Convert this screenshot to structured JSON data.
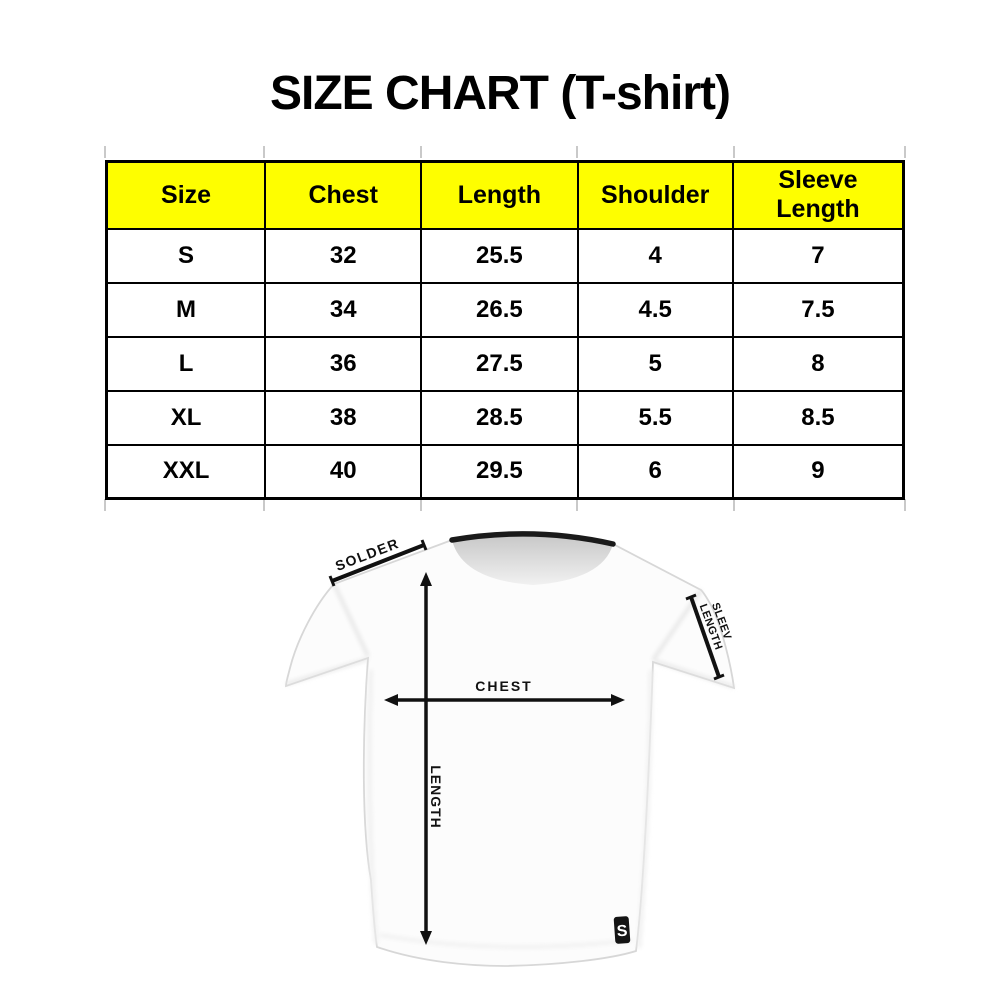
{
  "title": "SIZE CHART (T-shirt)",
  "table": {
    "header_bg": "#fefe00",
    "border_color": "#000000",
    "columns": [
      "Size",
      "Chest",
      "Length",
      "Shoulder",
      "Sleeve Length"
    ],
    "rows": [
      [
        "S",
        "32",
        "25.5",
        "4",
        "7"
      ],
      [
        "M",
        "34",
        "26.5",
        "4.5",
        "7.5"
      ],
      [
        "L",
        "36",
        "27.5",
        "5",
        "8"
      ],
      [
        "XL",
        "38",
        "28.5",
        "5.5",
        "8.5"
      ],
      [
        "XXL",
        "40",
        "29.5",
        "6",
        "9"
      ]
    ]
  },
  "diagram": {
    "shoulder_label": "SOLDER",
    "chest_label": "CHEST",
    "length_label": "LENGTH",
    "sleeve_label_line1": "SLEEV",
    "sleeve_label_line2": "LENGTH",
    "brand_tag_letter": "S",
    "arrow_color": "#111111",
    "collar_color": "#1a1a1a"
  },
  "chart_data": {
    "type": "table",
    "title": "SIZE CHART (T-shirt)",
    "columns": [
      "Size",
      "Chest",
      "Length",
      "Shoulder",
      "Sleeve Length"
    ],
    "rows": [
      {
        "size": "S",
        "chest": 32,
        "length": 25.5,
        "shoulder": 4,
        "sleeve_length": 7
      },
      {
        "size": "M",
        "chest": 34,
        "length": 26.5,
        "shoulder": 4.5,
        "sleeve_length": 7.5
      },
      {
        "size": "L",
        "chest": 36,
        "length": 27.5,
        "shoulder": 5,
        "sleeve_length": 8
      },
      {
        "size": "XL",
        "chest": 38,
        "length": 28.5,
        "shoulder": 5.5,
        "sleeve_length": 8.5
      },
      {
        "size": "XXL",
        "chest": 40,
        "length": 29.5,
        "shoulder": 6,
        "sleeve_length": 9
      }
    ],
    "header_bg": "#ffff00",
    "notes": "T-shirt measurement diagram labels: SOLDER (shoulder), CHEST, LENGTH, SLEEV LENGTH"
  }
}
